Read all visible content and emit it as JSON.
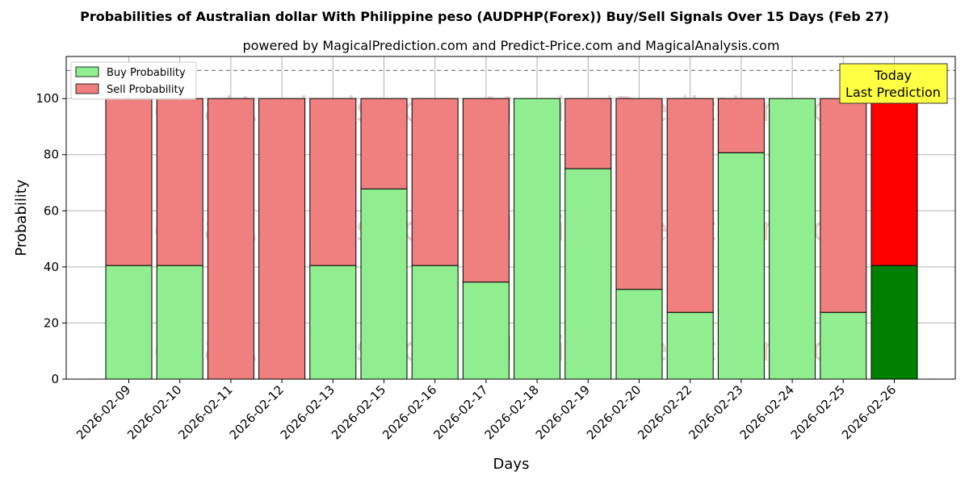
{
  "chart_data": {
    "type": "bar",
    "stacked": true,
    "title": "Probabilities of Australian dollar With Philippine peso (AUDPHP(Forex)) Buy/Sell Signals Over 15 Days (Feb 27)",
    "subtitle": "powered by MagicalPrediction.com and Predict-Price.com and MagicalAnalysis.com",
    "xlabel": "Days",
    "ylabel": "Probability",
    "ylim": [
      0,
      115
    ],
    "yticks": [
      0,
      20,
      40,
      60,
      80,
      100
    ],
    "grid": true,
    "legend_position": "top-left",
    "reference_line": 110,
    "categories": [
      "2026-02-09",
      "2026-02-10",
      "2026-02-11",
      "2026-02-12",
      "2026-02-13",
      "2026-02-15",
      "2026-02-16",
      "2026-02-17",
      "2026-02-18",
      "2026-02-19",
      "2026-02-20",
      "2026-02-22",
      "2026-02-23",
      "2026-02-24",
      "2026-02-25",
      "2026-02-26"
    ],
    "series": [
      {
        "name": "Buy Probability",
        "color": "#90ee90",
        "values": [
          40.5,
          40.5,
          0,
          0,
          40.5,
          67.8,
          40.5,
          34.6,
          100,
          75,
          32,
          23.8,
          80.7,
          100,
          23.8,
          40.5
        ]
      },
      {
        "name": "Sell Probability",
        "color": "#f08080",
        "values": [
          59.5,
          59.5,
          100,
          100,
          59.5,
          32.2,
          59.5,
          65.4,
          0,
          25,
          68,
          76.2,
          19.3,
          0,
          76.2,
          59.5
        ]
      }
    ],
    "highlight": {
      "index": 15,
      "buy_color": "#008000",
      "sell_color": "#ff0000"
    },
    "annotation": {
      "line1": "Today",
      "line2": "Last Prediction",
      "bg": "#ffff44"
    },
    "watermarks": [
      "MagicalAnalysis.com",
      "MagicalPrediction.com"
    ]
  }
}
